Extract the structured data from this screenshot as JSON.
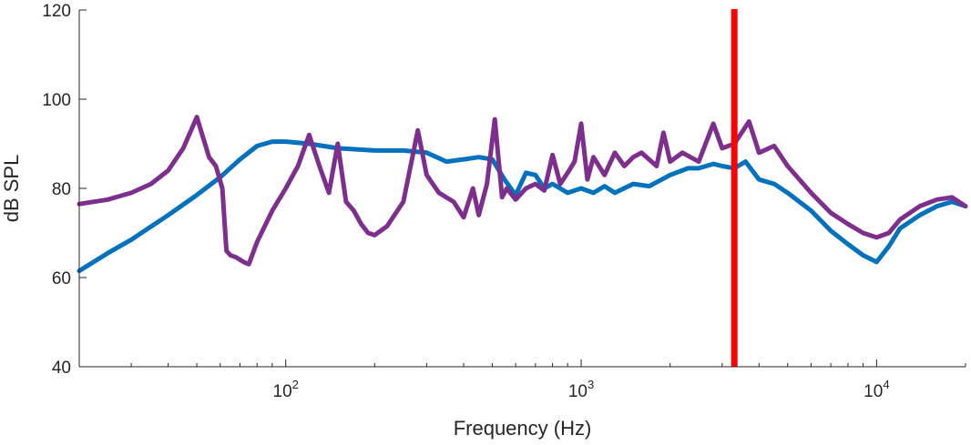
{
  "chart_data": {
    "type": "line",
    "title": "",
    "xlabel": "Frequency (Hz)",
    "ylabel": "dB SPL",
    "xscale": "log",
    "xlim": [
      20,
      20000
    ],
    "ylim": [
      40,
      120
    ],
    "grid": false,
    "legend": "none",
    "x_ticks": [
      {
        "base": "10",
        "exp": "2",
        "value": 100
      },
      {
        "base": "10",
        "exp": "3",
        "value": 1000
      },
      {
        "base": "10",
        "exp": "4",
        "value": 10000
      }
    ],
    "y_ticks": [
      "40",
      "60",
      "80",
      "100",
      "120"
    ],
    "series": [
      {
        "color": "#0072BD",
        "x": [
          20,
          25,
          30,
          40,
          50,
          60,
          70,
          80,
          90,
          100,
          120,
          150,
          200,
          250,
          300,
          350,
          400,
          450,
          500,
          550,
          600,
          650,
          700,
          750,
          800,
          900,
          1000,
          1100,
          1200,
          1300,
          1500,
          1700,
          2000,
          2300,
          2500,
          2800,
          3000,
          3300,
          3600,
          4000,
          4500,
          5000,
          6000,
          7000,
          8000,
          9000,
          10000,
          11000,
          12000,
          14000,
          16000,
          18000,
          20000
        ],
        "y": [
          61.5,
          65.5,
          68.5,
          74,
          78.5,
          82.5,
          86.5,
          89.5,
          90.5,
          90.5,
          90,
          89,
          88.5,
          88.5,
          88,
          86,
          86.5,
          87,
          86.5,
          82,
          78.5,
          83.5,
          83,
          80,
          81,
          79,
          80,
          79,
          80.5,
          79,
          81,
          80.5,
          83,
          84.5,
          84.5,
          85.5,
          85,
          84.5,
          86,
          82,
          81,
          79,
          75,
          70.5,
          67.5,
          65,
          63.5,
          67,
          71,
          74,
          76,
          77,
          76
        ]
      },
      {
        "color": "#7E2F8E",
        "x": [
          20,
          25,
          30,
          35,
          40,
          45,
          50,
          55,
          58,
          61,
          63,
          65,
          68,
          72,
          75,
          80,
          90,
          100,
          110,
          120,
          130,
          140,
          150,
          160,
          170,
          180,
          190,
          200,
          220,
          250,
          280,
          300,
          330,
          370,
          400,
          430,
          450,
          480,
          510,
          540,
          560,
          600,
          650,
          700,
          750,
          800,
          850,
          900,
          950,
          1000,
          1050,
          1100,
          1200,
          1300,
          1400,
          1500,
          1600,
          1800,
          1900,
          2000,
          2200,
          2500,
          2800,
          3000,
          3300,
          3700,
          4000,
          4500,
          5000,
          6000,
          7000,
          8000,
          9000,
          10000,
          11000,
          12000,
          14000,
          16000,
          18000,
          20000
        ],
        "y": [
          76.5,
          77.5,
          79,
          81,
          84,
          89,
          96,
          87,
          85,
          80,
          66,
          65,
          64.5,
          63.5,
          63,
          68,
          75,
          80,
          85,
          92,
          85,
          79,
          90,
          77,
          75,
          72,
          70,
          69.5,
          71.5,
          77,
          93,
          83,
          79,
          77,
          73.5,
          80,
          74,
          81,
          95.5,
          78,
          80,
          77.5,
          80,
          81,
          79.5,
          87.5,
          81,
          83.5,
          86,
          94.5,
          82,
          87,
          83,
          88,
          85,
          87,
          88,
          85,
          92.5,
          86,
          88,
          86,
          94.5,
          89,
          90,
          95,
          88,
          89.5,
          85,
          79,
          74.5,
          72,
          70,
          69,
          70,
          73,
          76,
          77.5,
          78,
          76
        ]
      }
    ],
    "marker": {
      "x": 3300,
      "color": "#FF0000"
    }
  }
}
